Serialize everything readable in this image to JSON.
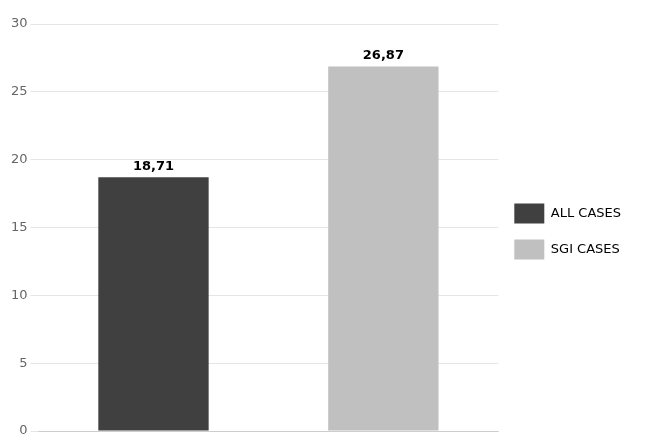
{
  "chart_data": {
    "type": "bar",
    "categories": [
      "ALL CASES",
      "SGI CASES"
    ],
    "values": [
      18.71,
      26.87
    ],
    "value_labels": [
      "18,71",
      "26,87"
    ],
    "colors": [
      "#404040",
      "#c0c0c0"
    ],
    "ylim": [
      0,
      30
    ],
    "yticks": [
      0,
      5,
      10,
      15,
      20,
      25,
      30
    ],
    "grid": true,
    "legend": "right",
    "data_labels": true,
    "tick_labels": "y"
  }
}
